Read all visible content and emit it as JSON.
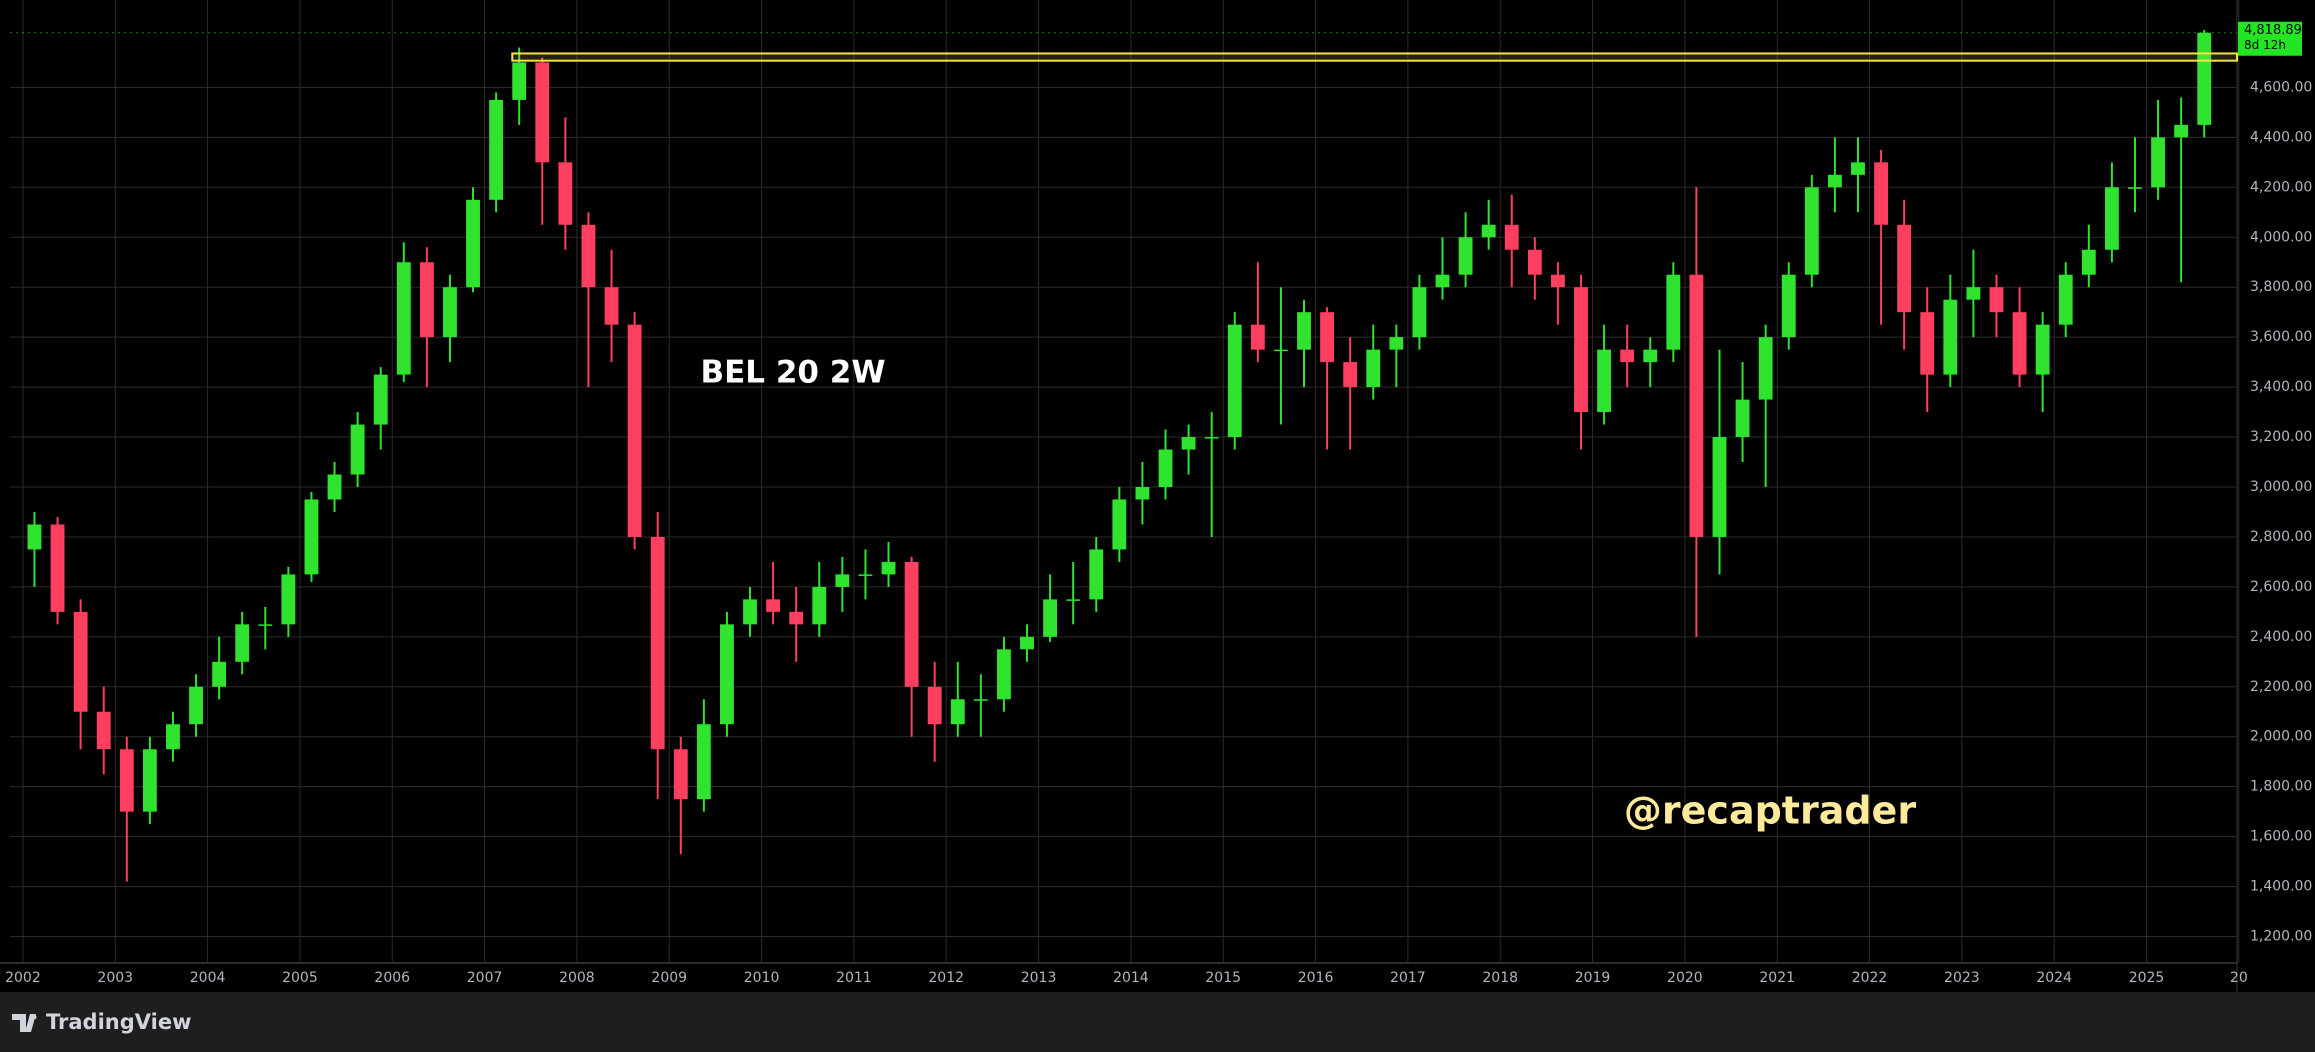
{
  "chart_data": {
    "type": "candlestick",
    "title": "BEL 20 2W",
    "watermark": "@recaptrader",
    "brand": "TradingView",
    "up_color": "#2fe32f",
    "down_color": "#ff3f5f",
    "grid": true,
    "xlim": [
      2001.86,
      2025.98
    ],
    "ylim": [
      1094,
      4950
    ],
    "xticks": [
      2002,
      2003,
      2004,
      2005,
      2006,
      2007,
      2008,
      2009,
      2010,
      2011,
      2012,
      2013,
      2014,
      2015,
      2016,
      2017,
      2018,
      2019,
      2020,
      2021,
      2022,
      2023,
      2024,
      2025,
      {
        "value": 2026,
        "label": "20"
      }
    ],
    "yticks": [
      {
        "value": 1200,
        "label": "1,200.00"
      },
      {
        "value": 1400,
        "label": "1,400.00"
      },
      {
        "value": 1600,
        "label": "1,600.00"
      },
      {
        "value": 1800,
        "label": "1,800.00"
      },
      {
        "value": 2000,
        "label": "2,000.00"
      },
      {
        "value": 2200,
        "label": "2,200.00"
      },
      {
        "value": 2400,
        "label": "2,400.00"
      },
      {
        "value": 2600,
        "label": "2,600.00"
      },
      {
        "value": 2800,
        "label": "2,800.00"
      },
      {
        "value": 3000,
        "label": "3,000.00"
      },
      {
        "value": 3200,
        "label": "3,200.00"
      },
      {
        "value": 3400,
        "label": "3,400.00"
      },
      {
        "value": 3600,
        "label": "3,600.00"
      },
      {
        "value": 3800,
        "label": "3,800.00"
      },
      {
        "value": 4000,
        "label": "4,000.00"
      },
      {
        "value": 4200,
        "label": "4,200.00"
      },
      {
        "value": 4400,
        "label": "4,400.00"
      },
      {
        "value": 4600,
        "label": "4,600.00"
      }
    ],
    "x": [
      2002.125,
      2002.375,
      2002.625,
      2002.875,
      2003.125,
      2003.375,
      2003.625,
      2003.875,
      2004.125,
      2004.375,
      2004.625,
      2004.875,
      2005.125,
      2005.375,
      2005.625,
      2005.875,
      2006.125,
      2006.375,
      2006.625,
      2006.875,
      2007.125,
      2007.375,
      2007.625,
      2007.875,
      2008.125,
      2008.375,
      2008.625,
      2008.875,
      2009.125,
      2009.375,
      2009.625,
      2009.875,
      2010.125,
      2010.375,
      2010.625,
      2010.875,
      2011.125,
      2011.375,
      2011.625,
      2011.875,
      2012.125,
      2012.375,
      2012.625,
      2012.875,
      2013.125,
      2013.375,
      2013.625,
      2013.875,
      2014.125,
      2014.375,
      2014.625,
      2014.875,
      2015.125,
      2015.375,
      2015.625,
      2015.875,
      2016.125,
      2016.375,
      2016.625,
      2016.875,
      2017.125,
      2017.375,
      2017.625,
      2017.875,
      2018.125,
      2018.375,
      2018.625,
      2018.875,
      2019.125,
      2019.375,
      2019.625,
      2019.875,
      2020.125,
      2020.375,
      2020.625,
      2020.875,
      2021.125,
      2021.375,
      2021.625,
      2021.875,
      2022.125,
      2022.375,
      2022.625,
      2022.875,
      2023.125,
      2023.375,
      2023.625,
      2023.875,
      2024.125,
      2024.375,
      2024.625,
      2024.875,
      2025.125,
      2025.375,
      2025.625
    ],
    "open": [
      2750,
      2850,
      2500,
      2100,
      1950,
      1700,
      1950,
      2050,
      2200,
      2300,
      2450,
      2450,
      2650,
      2950,
      3050,
      3250,
      3450,
      3900,
      3600,
      3800,
      4150,
      4550,
      4700,
      4300,
      4050,
      3800,
      3650,
      2800,
      1950,
      1750,
      2050,
      2450,
      2550,
      2500,
      2450,
      2600,
      2650,
      2650,
      2700,
      2200,
      2050,
      2150,
      2150,
      2350,
      2400,
      2550,
      2550,
      2750,
      2950,
      3000,
      3150,
      3200,
      3200,
      3650,
      3550,
      3550,
      3700,
      3500,
      3400,
      3550,
      3600,
      3800,
      3850,
      4000,
      4050,
      3950,
      3850,
      3800,
      3300,
      3550,
      3500,
      3550,
      3850,
      2800,
      3200,
      3350,
      3600,
      3850,
      4200,
      4250,
      4300,
      4050,
      3700,
      3450,
      3750,
      3800,
      3700,
      3450,
      3650,
      3850,
      3950,
      4200,
      4200,
      4400,
      4450
    ],
    "high": [
      2900,
      2880,
      2550,
      2200,
      2000,
      2000,
      2100,
      2250,
      2400,
      2500,
      2520,
      2680,
      2980,
      3100,
      3300,
      3480,
      3980,
      3960,
      3850,
      4200,
      4580,
      4760,
      4720,
      4480,
      4100,
      3950,
      3700,
      2900,
      2000,
      2150,
      2500,
      2600,
      2700,
      2600,
      2700,
      2720,
      2750,
      2780,
      2720,
      2300,
      2300,
      2250,
      2400,
      2450,
      2650,
      2700,
      2800,
      3000,
      3100,
      3230,
      3250,
      3300,
      3700,
      3900,
      3800,
      3750,
      3720,
      3600,
      3650,
      3650,
      3850,
      4000,
      4100,
      4150,
      4170,
      4000,
      3900,
      3850,
      3650,
      3650,
      3600,
      3900,
      4200,
      3550,
      3500,
      3650,
      3900,
      4250,
      4400,
      4400,
      4350,
      4150,
      3800,
      3850,
      3950,
      3850,
      3800,
      3700,
      3900,
      4050,
      4300,
      4400,
      4550,
      4560,
      4830
    ],
    "low": [
      2600,
      2450,
      1950,
      1850,
      1420,
      1650,
      1900,
      2000,
      2150,
      2250,
      2350,
      2400,
      2620,
      2900,
      3000,
      3150,
      3420,
      3400,
      3500,
      3780,
      4100,
      4450,
      4050,
      3950,
      3400,
      3500,
      2750,
      1750,
      1530,
      1700,
      2000,
      2400,
      2450,
      2300,
      2400,
      2500,
      2550,
      2600,
      2000,
      1900,
      2000,
      2000,
      2100,
      2300,
      2380,
      2450,
      2500,
      2700,
      2850,
      2950,
      3050,
      2800,
      3150,
      3500,
      3250,
      3400,
      3150,
      3150,
      3350,
      3400,
      3550,
      3750,
      3800,
      3950,
      3800,
      3750,
      3650,
      3150,
      3250,
      3400,
      3400,
      3500,
      2400,
      2650,
      3100,
      3000,
      3550,
      3800,
      4100,
      4100,
      3650,
      3550,
      3300,
      3400,
      3600,
      3600,
      3400,
      3300,
      3600,
      3800,
      3900,
      4100,
      4150,
      3820,
      4400
    ],
    "close": [
      2850,
      2500,
      2100,
      1950,
      1700,
      1950,
      2050,
      2200,
      2300,
      2450,
      2450,
      2650,
      2950,
      3050,
      3250,
      3450,
      3900,
      3600,
      3800,
      4150,
      4550,
      4700,
      4300,
      4050,
      3800,
      3650,
      2800,
      1950,
      1750,
      2050,
      2450,
      2550,
      2500,
      2450,
      2600,
      2650,
      2650,
      2700,
      2200,
      2050,
      2150,
      2150,
      2350,
      2400,
      2550,
      2550,
      2750,
      2950,
      3000,
      3150,
      3200,
      3200,
      3650,
      3550,
      3550,
      3700,
      3500,
      3400,
      3550,
      3600,
      3800,
      3850,
      4000,
      4050,
      3950,
      3850,
      3800,
      3300,
      3550,
      3500,
      3550,
      3850,
      2800,
      3200,
      3350,
      3600,
      3850,
      4200,
      4250,
      4300,
      4050,
      3700,
      3450,
      3750,
      3800,
      3700,
      3450,
      3650,
      3850,
      3950,
      4200,
      4200,
      4400,
      4450,
      4818.89
    ],
    "zone": [
      4707,
      4736
    ],
    "zone_start": 2007.3,
    "zone_color": "#f2e34a",
    "last_price": {
      "value": 4818.89,
      "label": "4,818.89"
    },
    "countdown": "8d 12h",
    "last_price_color": "#22e622"
  }
}
